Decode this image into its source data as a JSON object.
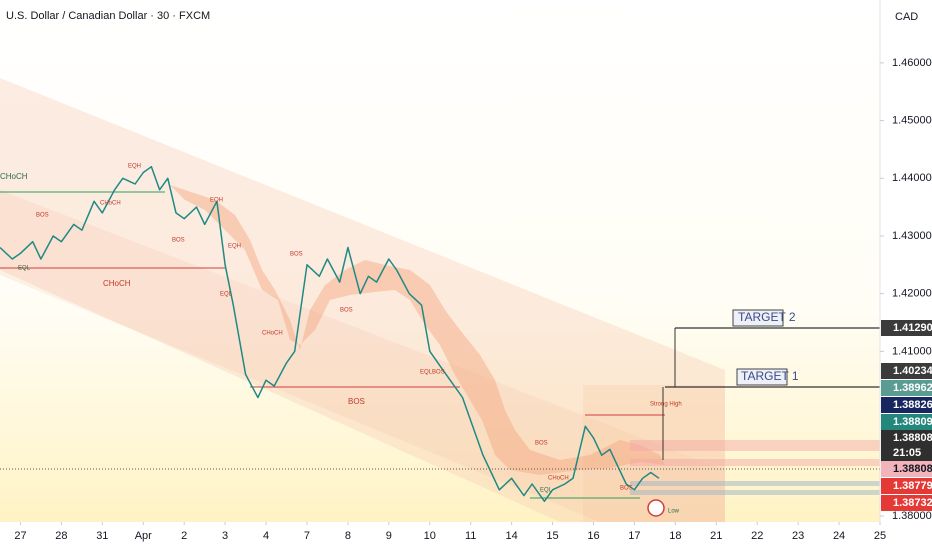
{
  "chart_data": {
    "type": "line",
    "title": "U.S. Dollar / Canadian Dollar · 30 · FXCM",
    "currency": "CAD",
    "xlim": [
      -0.5,
      21
    ],
    "xticks": [
      {
        "value": 0,
        "label": "27"
      },
      {
        "value": 1,
        "label": "28"
      },
      {
        "value": 2,
        "label": "31"
      },
      {
        "value": 3,
        "label": "Apr"
      },
      {
        "value": 4,
        "label": "2"
      },
      {
        "value": 5,
        "label": "3"
      },
      {
        "value": 6,
        "label": "4"
      },
      {
        "value": 7,
        "label": "7"
      },
      {
        "value": 8,
        "label": "8"
      },
      {
        "value": 9,
        "label": "9"
      },
      {
        "value": 10,
        "label": "10"
      },
      {
        "value": 11,
        "label": "11"
      },
      {
        "value": 12,
        "label": "14"
      },
      {
        "value": 13,
        "label": "15"
      },
      {
        "value": 14,
        "label": "16"
      },
      {
        "value": 15,
        "label": "17"
      },
      {
        "value": 16,
        "label": "18"
      },
      {
        "value": 17,
        "label": "21"
      },
      {
        "value": 18,
        "label": "22"
      },
      {
        "value": 19,
        "label": "23"
      },
      {
        "value": 20,
        "label": "24"
      },
      {
        "value": 21,
        "label": "25"
      }
    ],
    "ylim": [
      1.3799,
      1.4709
    ],
    "yticks": [
      {
        "value": 1.38,
        "label": "1.38000"
      },
      {
        "value": 1.41,
        "label": "1.41000"
      },
      {
        "value": 1.42,
        "label": "1.42000"
      },
      {
        "value": 1.43,
        "label": "1.43000"
      },
      {
        "value": 1.44,
        "label": "1.44000"
      },
      {
        "value": 1.45,
        "label": "1.45000"
      },
      {
        "value": 1.46,
        "label": "1.46000"
      }
    ],
    "series": [
      {
        "color": "#1f8a84",
        "x": [
          -0.5,
          -0.2,
          0,
          0.3,
          0.5,
          0.8,
          1,
          1.3,
          1.5,
          1.8,
          2,
          2.3,
          2.5,
          2.8,
          3,
          3.2,
          3.4,
          3.6,
          3.8,
          4,
          4.3,
          4.5,
          4.8,
          5,
          5.2,
          5.5,
          5.8,
          6,
          6.2,
          6.5,
          6.7,
          7,
          7.3,
          7.5,
          7.8,
          8,
          8.3,
          8.5,
          8.7,
          9,
          9.2,
          9.5,
          9.8,
          10,
          10.3,
          10.5,
          10.8,
          11,
          11.3,
          11.5,
          11.7,
          12,
          12.3,
          12.5,
          12.8,
          13,
          13.3,
          13.5,
          13.8,
          14,
          14.2,
          14.4,
          14.6,
          14.8,
          15,
          15.2,
          15.4,
          15.6
        ],
        "values": [
          1.428,
          1.426,
          1.427,
          1.429,
          1.426,
          1.43,
          1.429,
          1.432,
          1.431,
          1.436,
          1.434,
          1.438,
          1.44,
          1.439,
          1.441,
          1.442,
          1.438,
          1.44,
          1.434,
          1.433,
          1.435,
          1.432,
          1.436,
          1.425,
          1.418,
          1.406,
          1.402,
          1.405,
          1.404,
          1.408,
          1.41,
          1.425,
          1.423,
          1.426,
          1.422,
          1.428,
          1.42,
          1.423,
          1.422,
          1.426,
          1.424,
          1.42,
          1.418,
          1.41,
          1.407,
          1.405,
          1.402,
          1.398,
          1.392,
          1.389,
          1.386,
          1.388,
          1.385,
          1.387,
          1.384,
          1.386,
          1.387,
          1.388,
          1.397,
          1.395,
          1.392,
          1.393,
          1.39,
          1.387,
          1.386,
          1.388,
          1.389,
          1.388
        ]
      }
    ],
    "price_labels": [
      {
        "value": 1.4129,
        "label": "1.41290",
        "color": "#3b3b3b"
      },
      {
        "value": 1.40234,
        "label": "1.40234",
        "color": "#3b3b3b"
      },
      {
        "value": 1.38962,
        "label": "1.38962",
        "color": "#5b9c92"
      },
      {
        "value": 1.38826,
        "label": "1.38826",
        "color": "#17265f"
      },
      {
        "value": 1.38809,
        "label": "1.38809",
        "color": "#23877b"
      },
      {
        "value": 1.38808,
        "label": "1.38808",
        "color": "#2f2f2f"
      },
      {
        "label": "21:05",
        "color": "#2f2f2f"
      },
      {
        "value": 1.38808,
        "label": "1.38808",
        "color": "#f2b3bb"
      },
      {
        "value": 1.38779,
        "label": "1.38779",
        "color": "#e53935"
      },
      {
        "value": 1.38732,
        "label": "1.38732",
        "color": "#e53935"
      }
    ],
    "annotations": [
      "CHoCH",
      "CHoCH",
      "BOS",
      "TARGET 2",
      "TARGET 1",
      "Strong High",
      "EQH",
      "EQL",
      "BOS",
      "CHoCH",
      "BOS",
      "EQL",
      "BOS",
      "EQH",
      "CHoCH",
      "BOS",
      "EQLBOS",
      "BOS",
      "EQL",
      "CHoCH",
      "Low",
      "BOS",
      "EQH"
    ]
  }
}
